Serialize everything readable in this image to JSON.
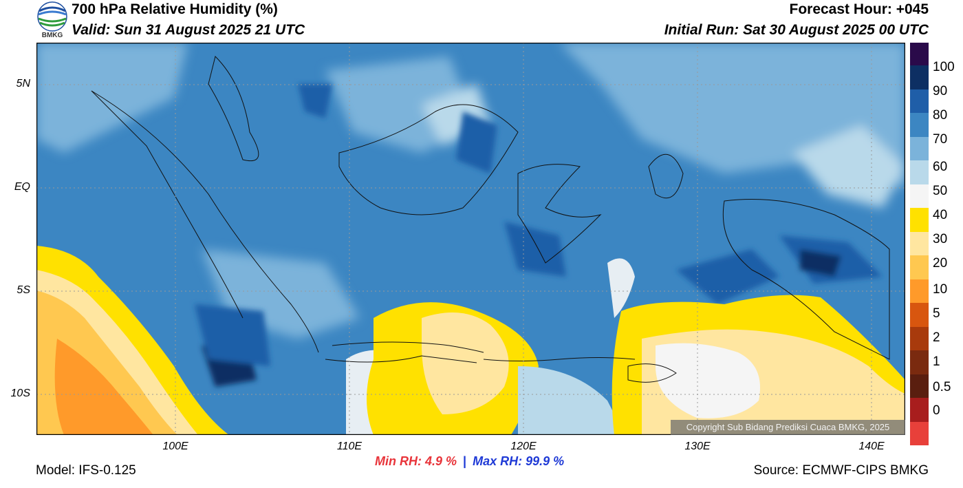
{
  "header": {
    "title": "700 hPa Relative Humidity (%)",
    "valid": "Valid: Sun 31 August 2025 21 UTC",
    "forecast_hour": "Forecast Hour: +045",
    "initial_run": "Initial Run: Sat 30 August 2025 00 UTC",
    "logo_text": "BMKG"
  },
  "map": {
    "lat_ticks": [
      "5N",
      "EQ",
      "5S",
      "10S"
    ],
    "lon_ticks": [
      "100E",
      "110E",
      "120E",
      "130E",
      "140E"
    ],
    "copyright": "Copyright Sub Bidang Prediksi Cuaca BMKG, 2025"
  },
  "colorbar": {
    "labels": [
      "100",
      "90",
      "80",
      "70",
      "60",
      "50",
      "40",
      "30",
      "20",
      "10",
      "5",
      "2",
      "1",
      "0.5",
      "0"
    ],
    "colors": [
      "#2a0a4a",
      "#0d2f63",
      "#1f5ea8",
      "#3c86c2",
      "#7bb3da",
      "#b9d9ea",
      "#e7eef3",
      "#f5f5f5",
      "#ffe100",
      "#ffe6a0",
      "#ffc850",
      "#ff9a2a",
      "#d8560f",
      "#a83a0c",
      "#7a2a0f",
      "#5a1e0f",
      "#a81d1d",
      "#e8403a"
    ]
  },
  "stats": {
    "min_label": "Min RH:",
    "min_value": "4.9 %",
    "separator": "|",
    "max_label": "Max RH:",
    "max_value": "99.9 %"
  },
  "footer": {
    "model": "Model: IFS-0.125",
    "source": "Source: ECMWF-CIPS BMKG"
  }
}
